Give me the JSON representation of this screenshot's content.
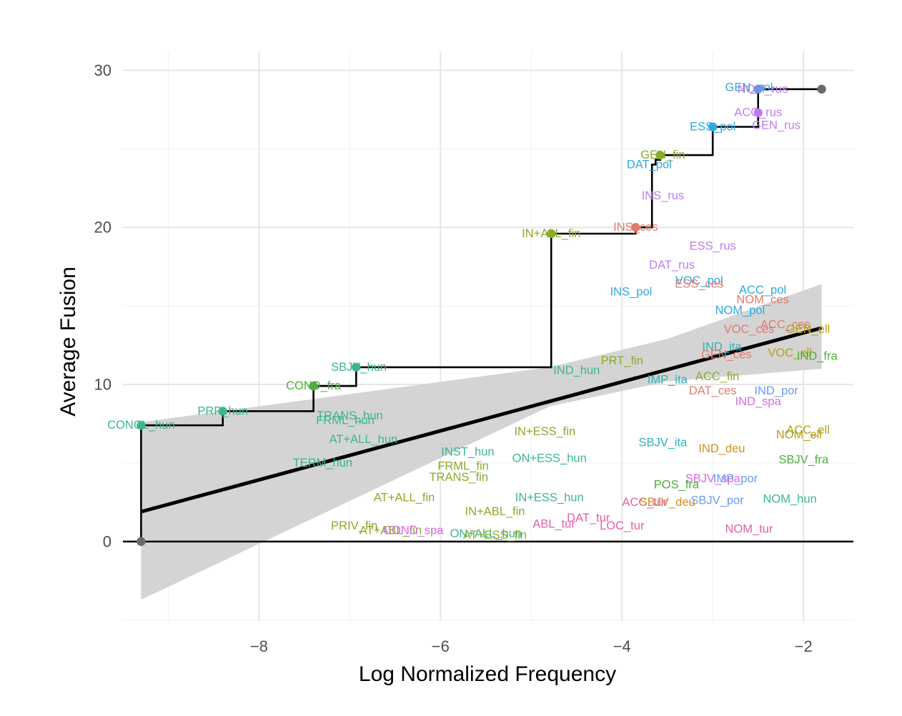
{
  "chart_data": {
    "type": "scatter",
    "title": "",
    "xlabel": "Log Normalized Frequency",
    "ylabel": "Average Fusion",
    "xlim": [
      -9.5,
      -1.45
    ],
    "ylim": [
      -5.1,
      31.2
    ],
    "xticks": [
      -8,
      -6,
      -4,
      -2
    ],
    "yticks": [
      0,
      10,
      20,
      30
    ],
    "xtick_labels": [
      "−8",
      "−6",
      "−4",
      "−2"
    ],
    "ytick_labels": [
      "0",
      "10",
      "20",
      "30"
    ],
    "grid": true,
    "legend": "none",
    "language_colors": {
      "hun": "#3cb592",
      "fin": "#88ab29",
      "fra": "#4cae3b",
      "rus": "#c07ced",
      "pol": "#2fa8e4",
      "ces": "#e07a6d",
      "ita": "#2eb0b7",
      "ell": "#b5a011",
      "por": "#6b9df0",
      "spa": "#d66ae6",
      "deu": "#d0901f",
      "tur": "#e460a8",
      "point": "#6b6b6b"
    },
    "labels": [
      {
        "text": "CONCL_hun",
        "x": -9.3,
        "y": 7.4,
        "lang": "hun"
      },
      {
        "text": "PRP_hun",
        "x": -8.4,
        "y": 8.3,
        "lang": "hun"
      },
      {
        "text": "TRANS_hun",
        "x": -7.0,
        "y": 8.0,
        "lang": "hun"
      },
      {
        "text": "FRML_hun",
        "x": -7.05,
        "y": 7.7,
        "lang": "hun"
      },
      {
        "text": "AT+ALL_hun",
        "x": -6.85,
        "y": 6.5,
        "lang": "hun"
      },
      {
        "text": "TERM_hun",
        "x": -7.3,
        "y": 5.0,
        "lang": "hun"
      },
      {
        "text": "COND_fra",
        "x": -7.4,
        "y": 9.9,
        "lang": "fra"
      },
      {
        "text": "SBJV_hun",
        "x": -6.9,
        "y": 11.1,
        "lang": "hun"
      },
      {
        "text": "IN+ALL_fin",
        "x": -4.78,
        "y": 19.6,
        "lang": "fin"
      },
      {
        "text": "INST_hun",
        "x": -5.7,
        "y": 5.7,
        "lang": "hun"
      },
      {
        "text": "ON+ESS_hun",
        "x": -4.8,
        "y": 5.3,
        "lang": "hun"
      },
      {
        "text": "IN+ESS_fin",
        "x": -4.85,
        "y": 7.0,
        "lang": "fin"
      },
      {
        "text": "FRML_fin",
        "x": -5.75,
        "y": 4.8,
        "lang": "fin"
      },
      {
        "text": "TRANS_fin",
        "x": -5.8,
        "y": 4.1,
        "lang": "fin"
      },
      {
        "text": "AT+ALL_fin",
        "x": -6.4,
        "y": 2.8,
        "lang": "fin"
      },
      {
        "text": "IN+ESS_hun",
        "x": -4.8,
        "y": 2.8,
        "lang": "hun"
      },
      {
        "text": "IN+ABL_fin",
        "x": -5.4,
        "y": 1.9,
        "lang": "fin"
      },
      {
        "text": "PRIV_fin",
        "x": -6.95,
        "y": 1.0,
        "lang": "fin"
      },
      {
        "text": "AT+ABL_fin",
        "x": -6.55,
        "y": 0.7,
        "lang": "fin"
      },
      {
        "text": "COND_spa",
        "x": -6.3,
        "y": 0.7,
        "lang": "spa"
      },
      {
        "text": "ON+ALL_hun",
        "x": -5.5,
        "y": 0.5,
        "lang": "hun"
      },
      {
        "text": "AT+ESS_fin",
        "x": -5.4,
        "y": 0.4,
        "lang": "fin"
      },
      {
        "text": "ABL_tur",
        "x": -4.75,
        "y": 1.1,
        "lang": "tur"
      },
      {
        "text": "DAT_tur",
        "x": -4.37,
        "y": 1.5,
        "lang": "tur"
      },
      {
        "text": "LOC_tur",
        "x": -4.0,
        "y": 1.0,
        "lang": "tur"
      },
      {
        "text": "ACC_tur",
        "x": -3.75,
        "y": 2.5,
        "lang": "tur"
      },
      {
        "text": "SBJV_deu",
        "x": -3.5,
        "y": 2.5,
        "lang": "deu"
      },
      {
        "text": "PRT_fin",
        "x": -4.0,
        "y": 11.5,
        "lang": "fin"
      },
      {
        "text": "IND_hun",
        "x": -4.5,
        "y": 10.9,
        "lang": "hun"
      },
      {
        "text": "IMP_ita",
        "x": -3.5,
        "y": 10.3,
        "lang": "ita"
      },
      {
        "text": "ACC_fin",
        "x": -2.95,
        "y": 10.5,
        "lang": "fin"
      },
      {
        "text": "DAT_ces",
        "x": -3.0,
        "y": 9.6,
        "lang": "ces"
      },
      {
        "text": "INS_pol",
        "x": -3.9,
        "y": 15.9,
        "lang": "pol"
      },
      {
        "text": "INS_ces",
        "x": -3.85,
        "y": 20.0,
        "lang": "ces"
      },
      {
        "text": "INS_rus",
        "x": -3.55,
        "y": 22.0,
        "lang": "rus"
      },
      {
        "text": "DAT_pol",
        "x": -3.7,
        "y": 24.0,
        "lang": "pol"
      },
      {
        "text": "GEN_fin",
        "x": -3.55,
        "y": 24.6,
        "lang": "fin"
      },
      {
        "text": "ESS_rus",
        "x": -3.0,
        "y": 18.8,
        "lang": "rus"
      },
      {
        "text": "DAT_rus",
        "x": -3.45,
        "y": 17.6,
        "lang": "rus"
      },
      {
        "text": "VOC_pol",
        "x": -3.15,
        "y": 16.6,
        "lang": "pol"
      },
      {
        "text": "ESS_ces",
        "x": -3.15,
        "y": 16.4,
        "lang": "ces"
      },
      {
        "text": "ACC_pol",
        "x": -2.45,
        "y": 16.0,
        "lang": "pol"
      },
      {
        "text": "NOM_ces",
        "x": -2.45,
        "y": 15.4,
        "lang": "ces"
      },
      {
        "text": "NOM_pol",
        "x": -2.7,
        "y": 14.7,
        "lang": "pol"
      },
      {
        "text": "ACC_ces",
        "x": -2.2,
        "y": 13.8,
        "lang": "ces"
      },
      {
        "text": "VOC_ces",
        "x": -2.6,
        "y": 13.5,
        "lang": "ces"
      },
      {
        "text": "GEN_ell",
        "x": -1.95,
        "y": 13.5,
        "lang": "ell"
      },
      {
        "text": "IND_ita",
        "x": -2.9,
        "y": 12.4,
        "lang": "ita"
      },
      {
        "text": "GEN_ces",
        "x": -2.85,
        "y": 11.9,
        "lang": "ces"
      },
      {
        "text": "VOC_ell",
        "x": -2.15,
        "y": 12.0,
        "lang": "ell"
      },
      {
        "text": "IND_fra",
        "x": -1.85,
        "y": 11.8,
        "lang": "fra"
      },
      {
        "text": "IND_por",
        "x": -2.3,
        "y": 9.6,
        "lang": "por"
      },
      {
        "text": "IND_spa",
        "x": -2.5,
        "y": 8.9,
        "lang": "spa"
      },
      {
        "text": "ACC_ell",
        "x": -1.95,
        "y": 7.1,
        "lang": "ell"
      },
      {
        "text": "NOM_ell",
        "x": -2.05,
        "y": 6.8,
        "lang": "ell"
      },
      {
        "text": "SBJV_ita",
        "x": -3.55,
        "y": 6.3,
        "lang": "ita"
      },
      {
        "text": "IND_deu",
        "x": -2.9,
        "y": 5.9,
        "lang": "deu"
      },
      {
        "text": "SBJV_fra",
        "x": -2.0,
        "y": 5.2,
        "lang": "fra"
      },
      {
        "text": "SBJV_spa",
        "x": -3.0,
        "y": 4.0,
        "lang": "spa"
      },
      {
        "text": "IMP_por",
        "x": -2.75,
        "y": 4.0,
        "lang": "por"
      },
      {
        "text": "POS_fra",
        "x": -3.4,
        "y": 3.6,
        "lang": "fra"
      },
      {
        "text": "SBJV_por",
        "x": -2.95,
        "y": 2.6,
        "lang": "por"
      },
      {
        "text": "NOM_hun",
        "x": -2.15,
        "y": 2.7,
        "lang": "hun"
      },
      {
        "text": "NOM_tur",
        "x": -2.6,
        "y": 0.8,
        "lang": "tur"
      },
      {
        "text": "ESS_pol",
        "x": -3.0,
        "y": 26.4,
        "lang": "pol"
      },
      {
        "text": "GEN_rus",
        "x": -2.3,
        "y": 26.5,
        "lang": "rus"
      },
      {
        "text": "ACC_rus",
        "x": -2.5,
        "y": 27.3,
        "lang": "rus"
      },
      {
        "text": "GEN_pol",
        "x": -2.6,
        "y": 28.9,
        "lang": "pol"
      },
      {
        "text": "NOM_rus",
        "x": -2.45,
        "y": 28.8,
        "lang": "rus"
      }
    ],
    "series": [
      {
        "type": "step",
        "color": "#000000",
        "points": [
          [
            -9.3,
            0
          ],
          [
            -9.3,
            7.4
          ],
          [
            -8.4,
            7.4
          ],
          [
            -8.4,
            8.3
          ],
          [
            -7.4,
            8.3
          ],
          [
            -7.4,
            9.9
          ],
          [
            -6.93,
            9.9
          ],
          [
            -6.93,
            11.1
          ],
          [
            -4.78,
            11.1
          ],
          [
            -4.78,
            19.6
          ],
          [
            -3.85,
            19.6
          ],
          [
            -3.85,
            20.0
          ],
          [
            -3.67,
            20.0
          ],
          [
            -3.67,
            24.0
          ],
          [
            -3.63,
            24.0
          ],
          [
            -3.63,
            24.3
          ],
          [
            -3.58,
            24.3
          ],
          [
            -3.58,
            24.6
          ],
          [
            -3.0,
            24.6
          ],
          [
            -3.0,
            26.4
          ],
          [
            -2.5,
            26.4
          ],
          [
            -2.5,
            28.8
          ],
          [
            -1.8,
            28.8
          ]
        ]
      }
    ],
    "step_points": [
      {
        "x": -9.3,
        "y": 0,
        "lang": "point"
      },
      {
        "x": -9.3,
        "y": 7.4,
        "lang": "hun"
      },
      {
        "x": -8.4,
        "y": 8.3,
        "lang": "hun"
      },
      {
        "x": -7.4,
        "y": 9.9,
        "lang": "fra"
      },
      {
        "x": -6.93,
        "y": 11.1,
        "lang": "hun"
      },
      {
        "x": -4.78,
        "y": 19.6,
        "lang": "fin"
      },
      {
        "x": -3.85,
        "y": 20.0,
        "lang": "ces"
      },
      {
        "x": -3.58,
        "y": 24.6,
        "lang": "fin"
      },
      {
        "x": -3.0,
        "y": 26.4,
        "lang": "pol"
      },
      {
        "x": -2.5,
        "y": 27.3,
        "lang": "rus"
      },
      {
        "x": -2.5,
        "y": 28.8,
        "lang": "pol"
      },
      {
        "x": -1.8,
        "y": 28.8,
        "lang": "point"
      }
    ],
    "regression": {
      "color": "#000000",
      "fit": [
        [
          -9.3,
          1.9
        ],
        [
          -1.8,
          13.6
        ]
      ],
      "band_color": "#d4d4d4",
      "band_upper": [
        [
          -9.3,
          7.6
        ],
        [
          -4.8,
          11.1
        ],
        [
          -3.5,
          12.9
        ],
        [
          -1.8,
          16.4
        ]
      ],
      "band_lower": [
        [
          -1.8,
          11.0
        ],
        [
          -3.5,
          10.2
        ],
        [
          -4.8,
          8.6
        ],
        [
          -9.3,
          -3.7
        ]
      ]
    }
  }
}
